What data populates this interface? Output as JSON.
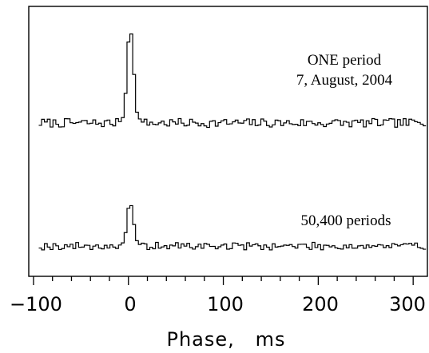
{
  "chart_data": {
    "type": "line",
    "title": "",
    "xlabel": "Phase,   ms",
    "ylabel": "",
    "xlim": [
      -105,
      315
    ],
    "ylim": [
      0,
      1
    ],
    "xticks": [
      -100,
      0,
      100,
      200,
      300
    ],
    "xtick_labels": [
      "−100",
      "0",
      "100",
      "200",
      "300"
    ],
    "xminor_step": 20,
    "grid": false,
    "legend": "none",
    "annotations": [
      {
        "id": "one-period",
        "text": "ONE  period"
      },
      {
        "id": "date",
        "text": "7, August, 2004"
      },
      {
        "id": "many-periods",
        "text": "50,400  periods"
      }
    ],
    "series": [
      {
        "id": "one-period",
        "step": 3,
        "x0": -93,
        "baseline": 0.568,
        "amplitude": 0.0165,
        "peaks": [
          {
            "x": -9,
            "dy": 0.005
          },
          {
            "x": -6,
            "dy": 0.02
          },
          {
            "x": -3,
            "dy": 0.11
          },
          {
            "x": 0,
            "dy": 0.3
          },
          {
            "x": 3,
            "dy": 0.33
          },
          {
            "x": 6,
            "dy": 0.18
          },
          {
            "x": 9,
            "dy": 0.04
          },
          {
            "x": 12,
            "dy": 0.015
          }
        ],
        "seed": 7
      },
      {
        "id": "many-periods",
        "step": 3,
        "x0": -93,
        "baseline": 0.112,
        "amplitude": 0.014,
        "peaks": [
          {
            "x": -9,
            "dy": 0.004
          },
          {
            "x": -6,
            "dy": 0.012
          },
          {
            "x": -3,
            "dy": 0.05
          },
          {
            "x": 0,
            "dy": 0.14
          },
          {
            "x": 3,
            "dy": 0.15
          },
          {
            "x": 6,
            "dy": 0.08
          },
          {
            "x": 9,
            "dy": 0.02
          },
          {
            "x": 12,
            "dy": 0.006
          }
        ],
        "seed": 19
      }
    ]
  }
}
